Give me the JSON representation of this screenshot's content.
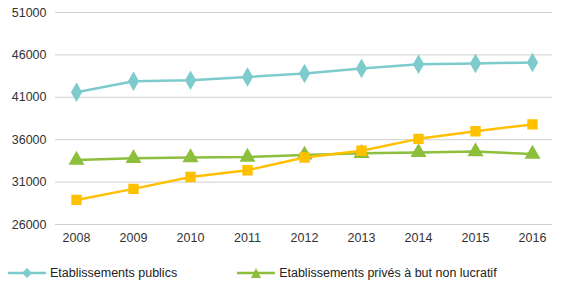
{
  "chart_data": {
    "type": "line",
    "categories": [
      "2008",
      "2009",
      "2010",
      "2011",
      "2012",
      "2013",
      "2014",
      "2015",
      "2016"
    ],
    "series": [
      {
        "name": "Etablissements publics",
        "color": "#7dcbcc",
        "marker": "diamond",
        "values": [
          41600,
          42900,
          43000,
          43400,
          43800,
          44400,
          44900,
          45000,
          45100
        ]
      },
      {
        "name": "Etablissements privés à but non lucratif",
        "color": "#8dbf3d",
        "marker": "triangle",
        "values": [
          33600,
          33800,
          33900,
          33950,
          34200,
          34400,
          34500,
          34600,
          34300
        ]
      },
      {
        "color": "#ffc000",
        "marker": "square",
        "values": [
          28900,
          30200,
          31600,
          32400,
          33900,
          34700,
          36100,
          37000,
          37800
        ]
      }
    ],
    "ylim": [
      26000,
      51000
    ],
    "yticks": [
      26000,
      31000,
      36000,
      41000,
      46000,
      51000
    ],
    "grid": true,
    "legend": "bottom"
  }
}
